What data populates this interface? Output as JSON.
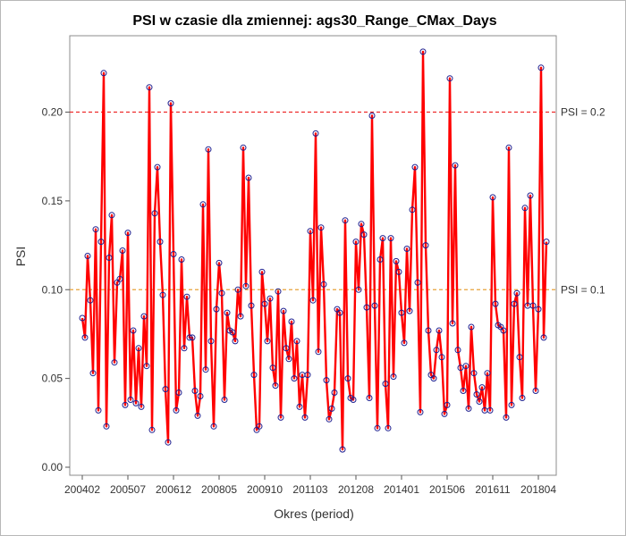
{
  "chart_data": {
    "type": "line",
    "title": "PSI w czasie dla zmiennej: ags30_Range_CMax_Days",
    "xlabel": "Okres (period)",
    "ylabel": "PSI",
    "ylim": [
      0.0,
      0.24
    ],
    "yticks": [
      "0.00",
      "0.05",
      "0.10",
      "0.15",
      "0.20"
    ],
    "ytick_values": [
      0.0,
      0.05,
      0.1,
      0.15,
      0.2
    ],
    "xticks": [
      "200402",
      "200507",
      "200612",
      "200805",
      "200910",
      "201103",
      "201208",
      "201401",
      "201506",
      "201611",
      "201804"
    ],
    "x_start": "200402",
    "x_end": "201808",
    "reference_lines": [
      {
        "label": "PSI = 0.2",
        "value": 0.2,
        "color": "#ee2b2b",
        "style": "dashed"
      },
      {
        "label": "PSI = 0.1",
        "value": 0.1,
        "color": "#e8a33a",
        "style": "dashed"
      }
    ],
    "series": [
      {
        "color": "#ff0000",
        "marker_color": "#1f1f8f",
        "values": [
          0.084,
          0.073,
          0.119,
          0.094,
          0.053,
          0.134,
          0.032,
          0.127,
          0.222,
          0.023,
          0.118,
          0.142,
          0.059,
          0.104,
          0.106,
          0.122,
          0.035,
          0.132,
          0.038,
          0.077,
          0.036,
          0.067,
          0.034,
          0.085,
          0.057,
          0.214,
          0.021,
          0.143,
          0.169,
          0.127,
          0.097,
          0.044,
          0.014,
          0.205,
          0.12,
          0.032,
          0.042,
          0.117,
          0.067,
          0.096,
          0.073,
          0.073,
          0.043,
          0.029,
          0.04,
          0.148,
          0.055,
          0.179,
          0.071,
          0.023,
          0.089,
          0.115,
          0.098,
          0.038,
          0.087,
          0.077,
          0.076,
          0.071,
          0.1,
          0.085,
          0.18,
          0.102,
          0.163,
          0.091,
          0.052,
          0.021,
          0.023,
          0.11,
          0.092,
          0.071,
          0.095,
          0.056,
          0.046,
          0.099,
          0.028,
          0.088,
          0.067,
          0.061,
          0.082,
          0.05,
          0.071,
          0.034,
          0.052,
          0.028,
          0.052,
          0.133,
          0.094,
          0.188,
          0.065,
          0.135,
          0.103,
          0.049,
          0.027,
          0.033,
          0.042,
          0.089,
          0.087,
          0.01,
          0.139,
          0.05,
          0.039,
          0.038,
          0.127,
          0.1,
          0.137,
          0.131,
          0.09,
          0.039,
          0.198,
          0.091,
          0.022,
          0.117,
          0.129,
          0.047,
          0.022,
          0.129,
          0.051,
          0.116,
          0.11,
          0.087,
          0.07,
          0.123,
          0.088,
          0.145,
          0.169,
          0.104,
          0.031,
          0.234,
          0.125,
          0.077,
          0.052,
          0.05,
          0.066,
          0.077,
          0.062,
          0.03,
          0.035,
          0.219,
          0.081,
          0.17,
          0.066,
          0.056,
          0.043,
          0.057,
          0.033,
          0.079,
          0.053,
          0.041,
          0.037,
          0.045,
          0.032,
          0.053,
          0.032,
          0.152,
          0.092,
          0.08,
          0.079,
          0.077,
          0.028,
          0.18,
          0.035,
          0.092,
          0.098,
          0.062,
          0.039,
          0.146,
          0.091,
          0.153,
          0.091,
          0.043,
          0.089,
          0.225,
          0.073,
          0.127
        ]
      }
    ]
  }
}
